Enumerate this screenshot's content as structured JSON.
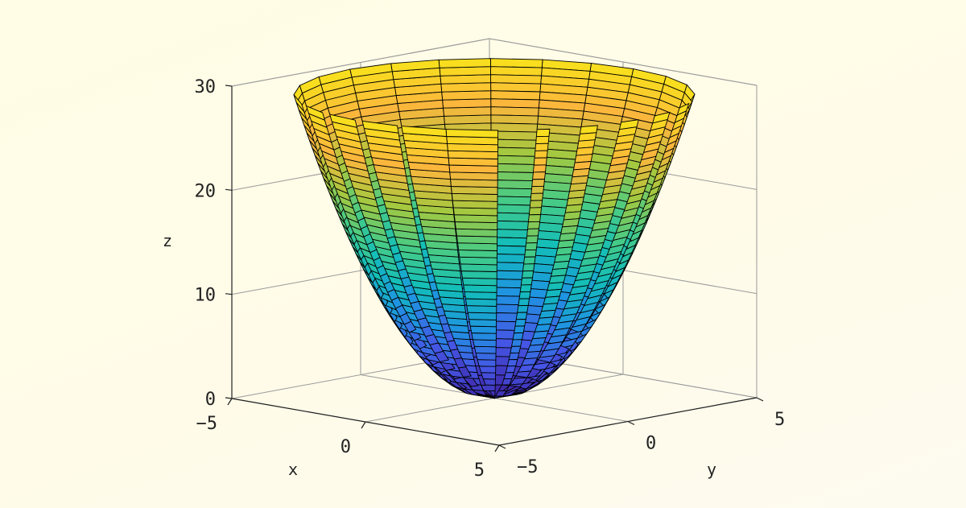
{
  "colors": {
    "background": "#fffde9",
    "axis_line": "#222222",
    "grid_line": "#9a9a9a",
    "mesh_edge": "#000000",
    "colormap": [
      "#3e26a8",
      "#4557e6",
      "#1f94e0",
      "#12bdb9",
      "#49cb84",
      "#a6c83f",
      "#fbb63d",
      "#f8e21b"
    ]
  },
  "chart_data": {
    "type": "surface",
    "function": "z = x^2 + y^2",
    "surface_shape": "paraboloid (circular domain)",
    "radius": 5.4,
    "z_range": [
      0,
      29.2
    ],
    "title": "",
    "xlabel": "x",
    "ylabel": "y",
    "zlabel": "z",
    "xlim": [
      -5,
      5
    ],
    "ylim": [
      -5,
      5
    ],
    "zlim": [
      0,
      30
    ],
    "xticks": [
      -5,
      0,
      5
    ],
    "yticks": [
      -5,
      0,
      5
    ],
    "zticks": [
      0,
      10,
      20,
      30
    ],
    "xtick_labels": [
      "−5",
      "0",
      "5"
    ],
    "ytick_labels": [
      "−5",
      "0",
      "5"
    ],
    "ztick_labels": [
      "0",
      "10",
      "20",
      "30"
    ],
    "grid": true,
    "box": true,
    "colormap": "parula",
    "edge_color": "black",
    "mesh": {
      "angular_segments": 24,
      "radial_rings": 40
    }
  }
}
